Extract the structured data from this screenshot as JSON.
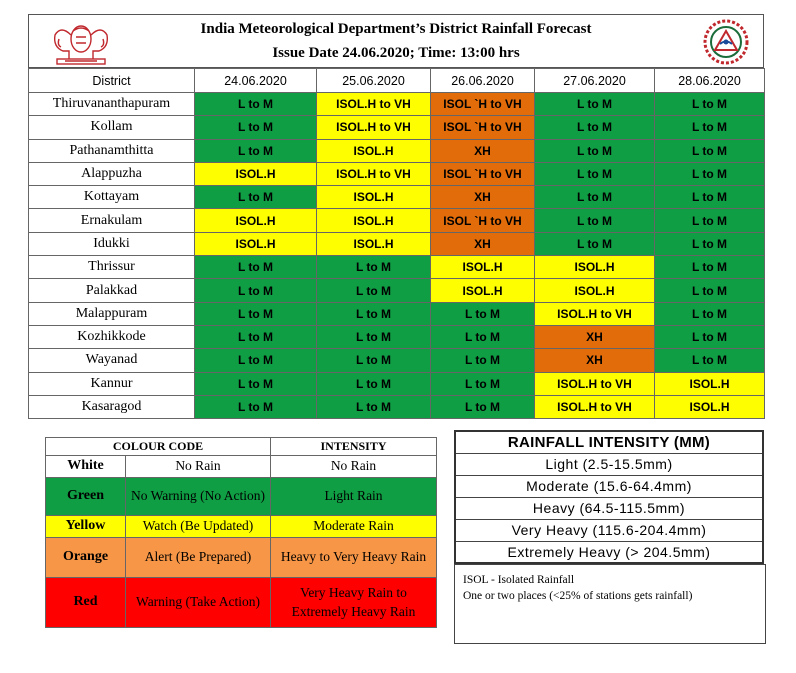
{
  "header": {
    "title": "India Meteorological Department’s District Rainfall Forecast",
    "issue_line": "Issue Date 24.06.2020; Time: 13:00 hrs"
  },
  "colors": {
    "green": "#0f9e44",
    "yellow": "#fefe01",
    "orange": "#e26c0a"
  },
  "forecast": {
    "district_header": "District",
    "dates": [
      "24.06.2020",
      "25.06.2020",
      "26.06.2020",
      "27.06.2020",
      "28.06.2020"
    ],
    "rows": [
      {
        "district": "Thiruvananthapuram",
        "cells": [
          [
            "L to M",
            "g"
          ],
          [
            "ISOL.H to VH",
            "y"
          ],
          [
            "ISOL `H to VH",
            "o"
          ],
          [
            "L to M",
            "g"
          ],
          [
            "L to M",
            "g"
          ]
        ]
      },
      {
        "district": "Kollam",
        "cells": [
          [
            "L to M",
            "g"
          ],
          [
            "ISOL.H to VH",
            "y"
          ],
          [
            "ISOL `H to VH",
            "o"
          ],
          [
            "L to M",
            "g"
          ],
          [
            "L to M",
            "g"
          ]
        ]
      },
      {
        "district": "Pathanamthitta",
        "cells": [
          [
            "L to M",
            "g"
          ],
          [
            "ISOL.H",
            "y"
          ],
          [
            "XH",
            "o"
          ],
          [
            "L to M",
            "g"
          ],
          [
            "L to M",
            "g"
          ]
        ]
      },
      {
        "district": "Alappuzha",
        "cells": [
          [
            "ISOL.H",
            "y"
          ],
          [
            "ISOL.H to VH",
            "y"
          ],
          [
            "ISOL `H to VH",
            "o"
          ],
          [
            "L to M",
            "g"
          ],
          [
            "L to M",
            "g"
          ]
        ]
      },
      {
        "district": "Kottayam",
        "cells": [
          [
            "L to M",
            "g"
          ],
          [
            "ISOL.H",
            "y"
          ],
          [
            "XH",
            "o"
          ],
          [
            "L to M",
            "g"
          ],
          [
            "L to M",
            "g"
          ]
        ]
      },
      {
        "district": "Ernakulam",
        "cells": [
          [
            "ISOL.H",
            "y"
          ],
          [
            "ISOL.H",
            "y"
          ],
          [
            "ISOL `H to VH",
            "o"
          ],
          [
            "L to M",
            "g"
          ],
          [
            "L to M",
            "g"
          ]
        ]
      },
      {
        "district": "Idukki",
        "cells": [
          [
            "ISOL.H",
            "y"
          ],
          [
            "ISOL.H",
            "y"
          ],
          [
            "XH",
            "o"
          ],
          [
            "L to M",
            "g"
          ],
          [
            "L to M",
            "g"
          ]
        ]
      },
      {
        "district": "Thrissur",
        "cells": [
          [
            "L to M",
            "g"
          ],
          [
            "L to M",
            "g"
          ],
          [
            "ISOL.H",
            "y"
          ],
          [
            "ISOL.H",
            "y"
          ],
          [
            "L to M",
            "g"
          ]
        ]
      },
      {
        "district": "Palakkad",
        "cells": [
          [
            "L to M",
            "g"
          ],
          [
            "L to M",
            "g"
          ],
          [
            "ISOL.H",
            "y"
          ],
          [
            "ISOL.H",
            "y"
          ],
          [
            "L to M",
            "g"
          ]
        ]
      },
      {
        "district": "Malappuram",
        "cells": [
          [
            "L to M",
            "g"
          ],
          [
            "L to M",
            "g"
          ],
          [
            "L to M",
            "g"
          ],
          [
            "ISOL.H to VH",
            "y"
          ],
          [
            "L to M",
            "g"
          ]
        ]
      },
      {
        "district": "Kozhikkode",
        "cells": [
          [
            "L to M",
            "g"
          ],
          [
            "L to M",
            "g"
          ],
          [
            "L to M",
            "g"
          ],
          [
            "XH",
            "o"
          ],
          [
            "L to M",
            "g"
          ]
        ]
      },
      {
        "district": "Wayanad",
        "cells": [
          [
            "L to M",
            "g"
          ],
          [
            "L to M",
            "g"
          ],
          [
            "L to M",
            "g"
          ],
          [
            "XH",
            "o"
          ],
          [
            "L to M",
            "g"
          ]
        ]
      },
      {
        "district": "Kannur",
        "cells": [
          [
            "L to M",
            "g"
          ],
          [
            "L to M",
            "g"
          ],
          [
            "L to M",
            "g"
          ],
          [
            "ISOL.H to VH",
            "y"
          ],
          [
            "ISOL.H",
            "y"
          ]
        ]
      },
      {
        "district": "Kasaragod",
        "cells": [
          [
            "L to M",
            "g"
          ],
          [
            "L to M",
            "g"
          ],
          [
            "L to M",
            "g"
          ],
          [
            "ISOL.H to VH",
            "y"
          ],
          [
            "ISOL.H",
            "y"
          ]
        ]
      }
    ]
  },
  "legend": {
    "header_code": "COLOUR CODE",
    "header_intensity": "INTENSITY",
    "rows": [
      {
        "color": "White",
        "meaning": "No Rain",
        "intensity": "No Rain",
        "cls": "lg-white"
      },
      {
        "color": "Green",
        "meaning": "No Warning (No Action)",
        "intensity": "Light Rain",
        "cls": "lg-green"
      },
      {
        "color": "Yellow",
        "meaning": "Watch (Be Updated)",
        "intensity": "Moderate Rain",
        "cls": "lg-yellow"
      },
      {
        "color": "Orange",
        "meaning": "Alert (Be Prepared)",
        "intensity": "Heavy to Very Heavy Rain",
        "cls": "lg-orange"
      },
      {
        "color": "Red",
        "meaning": "Warning (Take Action)",
        "intensity": "Very Heavy Rain to Extremely Heavy Rain",
        "cls": "lg-red"
      }
    ]
  },
  "intensity_table": {
    "title": "RAINFALL INTENSITY (MM)",
    "rows": [
      "Light (2.5-15.5mm)",
      "Moderate (15.6-64.4mm)",
      "Heavy (64.5-115.5mm)",
      "Very Heavy (115.6-204.4mm)",
      "Extremely Heavy (> 204.5mm)"
    ]
  },
  "isol_note": {
    "line1": "ISOL - Isolated Rainfall",
    "line2": "One or two places (<25% of stations gets rainfall)"
  }
}
